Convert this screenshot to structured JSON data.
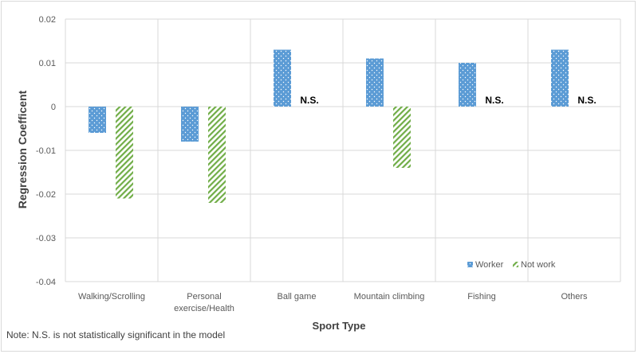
{
  "chart_data": {
    "type": "bar",
    "title": "",
    "xlabel": "Sport Type",
    "ylabel": "Regression Coefficent",
    "ylim": [
      -0.04,
      0.02
    ],
    "yticks": [
      0.02,
      0.01,
      0,
      -0.01,
      -0.02,
      -0.03,
      -0.04
    ],
    "ytick_labels": [
      "0.02",
      "0.01",
      "0",
      "-0.01",
      "-0.02",
      "-0.03",
      "-0.04"
    ],
    "categories": [
      [
        "Walking/Scrolling"
      ],
      [
        "Personal",
        "exercise/Health"
      ],
      [
        "Ball game"
      ],
      [
        "Mountain climbing"
      ],
      [
        "Fishing"
      ],
      [
        "Others"
      ]
    ],
    "series": [
      {
        "name": "Worker",
        "color": "#5b9bd5",
        "values": [
          -0.006,
          -0.008,
          0.013,
          0.011,
          0.01,
          0.013
        ]
      },
      {
        "name": "Not work",
        "color": "#70ad47",
        "values": [
          -0.021,
          -0.022,
          null,
          -0.014,
          null,
          null
        ]
      }
    ],
    "not_significant_label": "N.S.",
    "legend_position": "bottom-right",
    "grid": true
  },
  "note": "Note: N.S. is not statistically significant in the model"
}
